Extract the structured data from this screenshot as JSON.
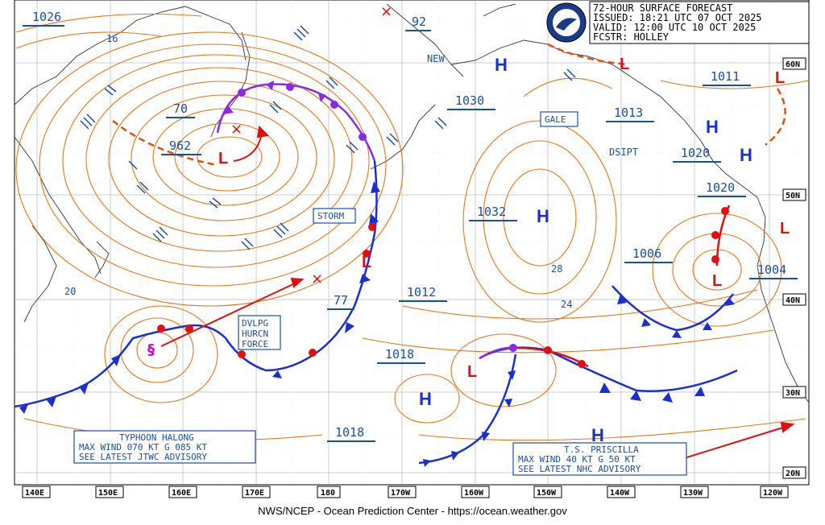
{
  "header": {
    "line1": "72-HOUR SURFACE FORECAST",
    "line2": "ISSUED: 18:21 UTC 07 OCT 2025",
    "line3": "VALID:  12:00 UTC 10 OCT 2025",
    "line4": "FCSTR:  HOLLEY"
  },
  "logo_text": "NOAA",
  "footer": "NWS/NCEP - Ocean Prediction Center - https://ocean.weather.gov",
  "longitude_labels": [
    "140E",
    "150E",
    "160E",
    "170E",
    "180",
    "170W",
    "160W",
    "150W",
    "140W",
    "130W",
    "120W"
  ],
  "latitude_labels": [
    "60N",
    "50N",
    "40N",
    "30N",
    "20N"
  ],
  "pressure_labels": {
    "p1026": "1026",
    "p92": "92",
    "p16": "16",
    "p70": "70",
    "p962": "962",
    "p1030": "1030",
    "p1013": "1013",
    "p1011": "1011",
    "p1020a": "1020",
    "p1020b": "1020",
    "p1032": "1032",
    "p1006": "1006",
    "p1004": "1004",
    "p1012": "1012",
    "p77": "77",
    "p1018a": "1018",
    "p1018b": "1018",
    "p28": "28",
    "p24": "24",
    "p20": "20"
  },
  "text_labels": {
    "new": "NEW",
    "dsipt": "DSIPT"
  },
  "boxed_labels": {
    "gale": "GALE",
    "storm": "STORM",
    "dvlpg": [
      "DVLPG",
      "HURCN",
      "FORCE"
    ],
    "typhoon": [
      "TYPHOON HALONG",
      "MAX WIND 070 KT G 085 KT",
      "SEE LATEST JTWC ADVISORY"
    ],
    "priscilla": [
      "T.S. PRISCILLA",
      "MAX WIND 40 KT G 50 KT",
      "SEE LATEST NHC ADVISORY"
    ]
  },
  "symbols": {
    "high": "H",
    "low": "L",
    "x": "×"
  },
  "colors": {
    "isobar": "#e07820",
    "high": "#1a2fd0",
    "low": "#e01010",
    "label": "#1a4fa0",
    "cold_front": "#1a2fd0",
    "warm_front": "#e01010",
    "occluded": "#8a2be2"
  }
}
